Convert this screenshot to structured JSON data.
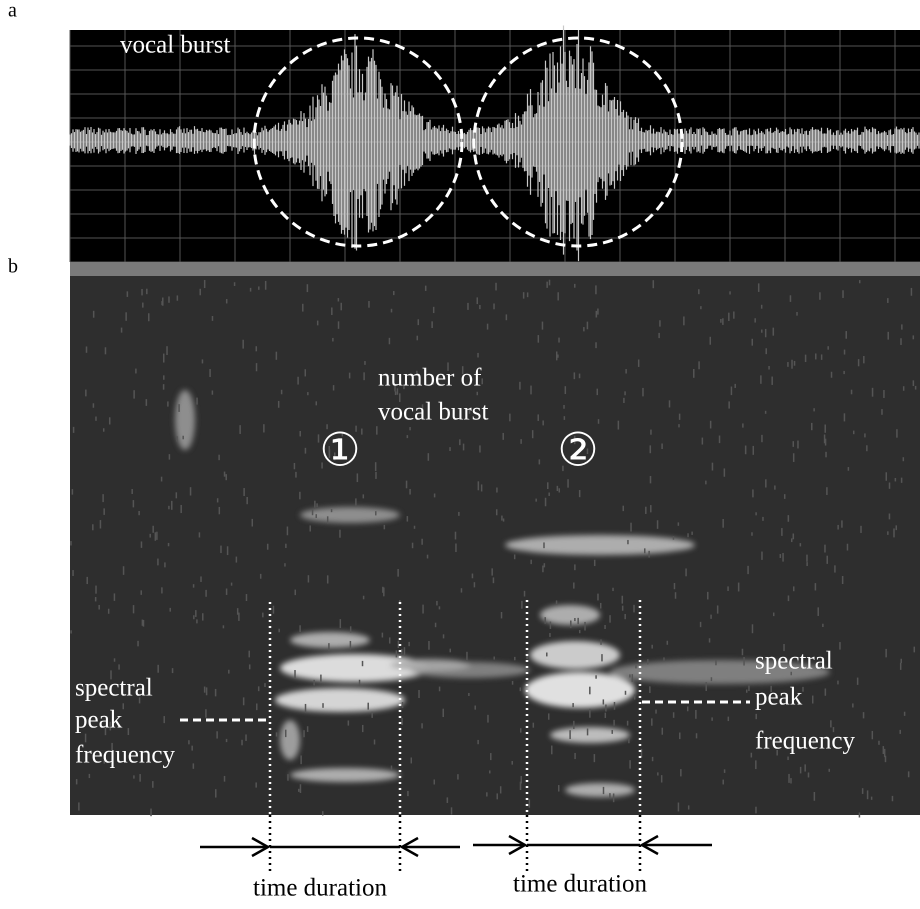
{
  "panels": {
    "a": "a",
    "b": "b"
  },
  "waveform": {
    "annotation": "vocal burst"
  },
  "spectrogram": {
    "annotation": [
      "number of",
      "vocal burst"
    ],
    "burst_numbers": [
      "①",
      "②"
    ],
    "spectral_left": [
      "spectral",
      "peak",
      "frequency"
    ],
    "spectral_right": [
      "spectral",
      "peak",
      "frequency"
    ],
    "durations": [
      "time duration",
      "time duration"
    ]
  }
}
